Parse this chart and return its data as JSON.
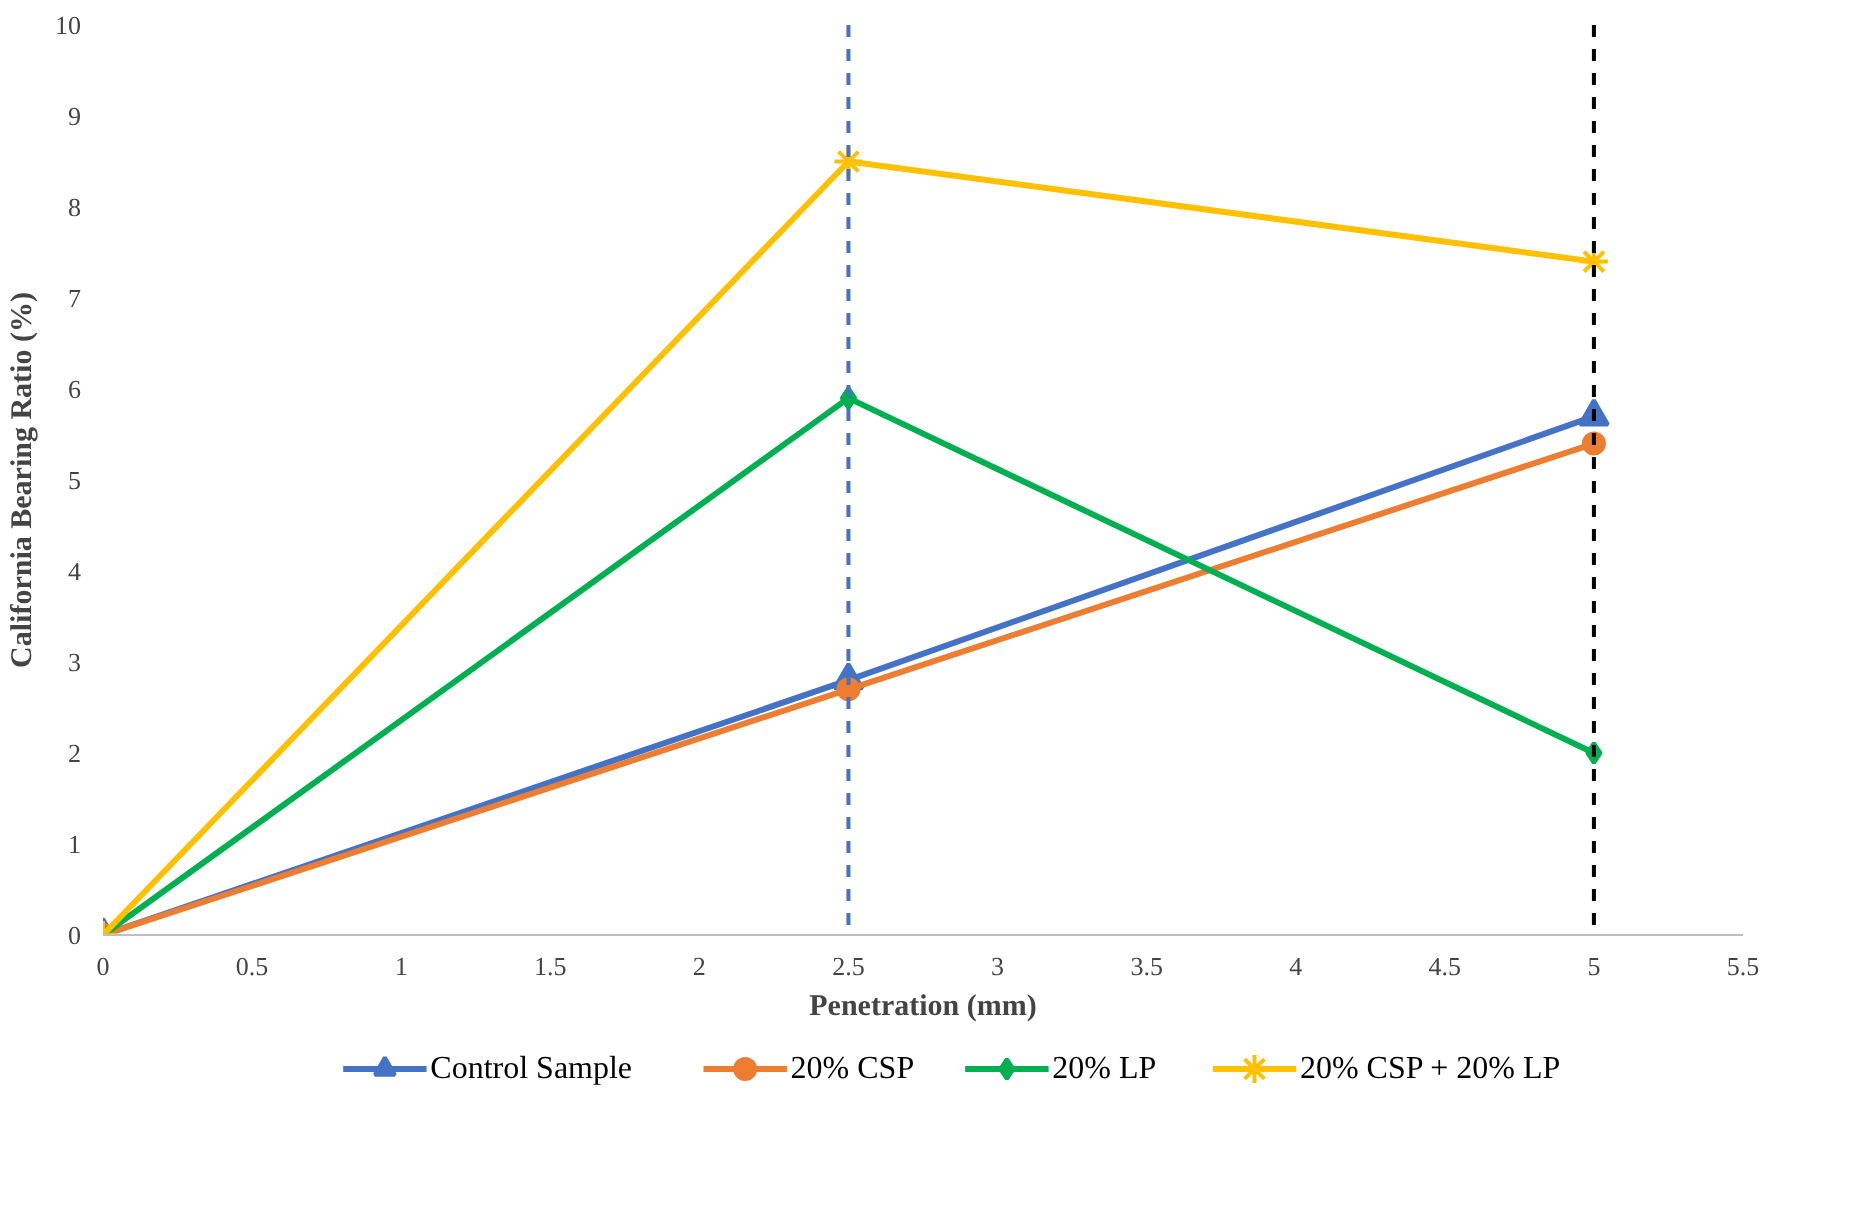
{
  "chart_data": {
    "type": "line",
    "xlabel": "Penetration (mm)",
    "ylabel": "California Bearing Ratio (%)",
    "x": [
      0,
      2.5,
      5
    ],
    "series": [
      {
        "name": "Control Sample",
        "color": "#4472c4",
        "marker": "triangle",
        "values": [
          0,
          2.8,
          5.7
        ]
      },
      {
        "name": "20% CSP",
        "color": "#ed7d31",
        "marker": "circle",
        "values": [
          0,
          2.7,
          5.4
        ]
      },
      {
        "name": "20% LP",
        "color": "#00b050",
        "marker": "diamond",
        "values": [
          0,
          5.9,
          2.0
        ]
      },
      {
        "name": "20% CSP + 20% LP",
        "color": "#ffc000",
        "marker": "cross",
        "values": [
          0,
          8.5,
          7.4
        ]
      }
    ],
    "xlim": [
      0,
      5.5
    ],
    "xticks": [
      0,
      0.5,
      1,
      1.5,
      2,
      2.5,
      3,
      3.5,
      4,
      4.5,
      5,
      5.5
    ],
    "ylim": [
      0,
      10
    ],
    "yticks": [
      0,
      1,
      2,
      3,
      4,
      5,
      6,
      7,
      8,
      9,
      10
    ],
    "ref_lines": [
      {
        "axis": "x",
        "value": 2.5,
        "color": "#4472c4",
        "line_style": "dashed"
      },
      {
        "axis": "x",
        "value": 5,
        "color": "#000000",
        "line_style": "dashed"
      }
    ],
    "grid": false,
    "legend": "bottom",
    "line_style": "solid"
  }
}
